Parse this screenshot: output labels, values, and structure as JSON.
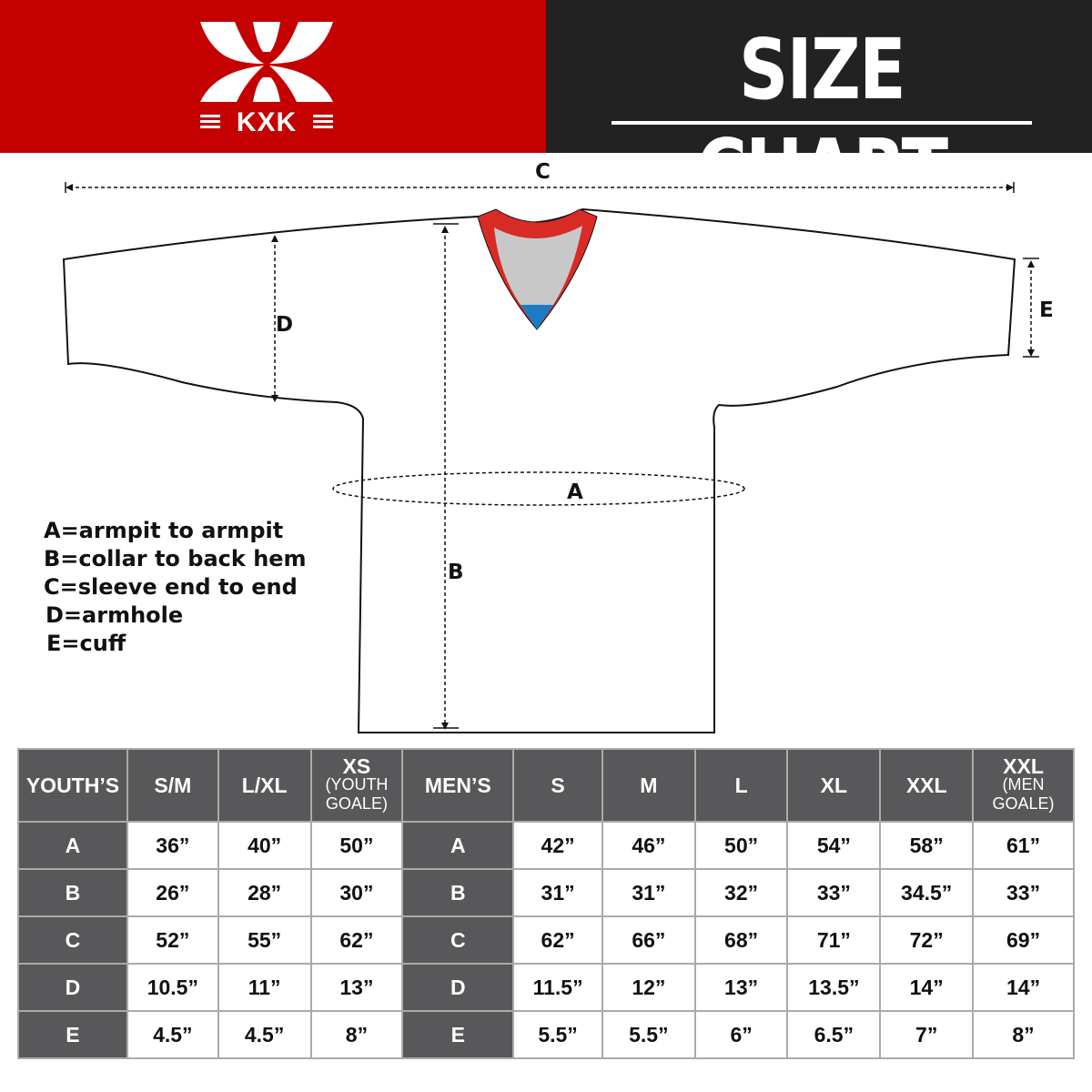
{
  "brand": {
    "logo_text": "KXK",
    "colors": {
      "red": "#c40000",
      "dark": "#222222",
      "table_header": "#58585a"
    }
  },
  "title": "SIZE CHART",
  "diagram": {
    "labels": {
      "a": "A",
      "b": "B",
      "c": "C",
      "d": "D",
      "e": "E"
    }
  },
  "legend": [
    "A=armpit to armpit",
    "B=collar to back hem",
    "C=sleeve end to end",
    "D=armhole",
    "E=cuff"
  ],
  "table": {
    "youth": {
      "header": "YOUTH’S",
      "sizes": [
        {
          "main": "S/M",
          "sub": ""
        },
        {
          "main": "L/XL",
          "sub": ""
        },
        {
          "main": "XS",
          "sub": "(YOUTH GOALE)"
        }
      ],
      "rows": [
        {
          "label": "A",
          "values": [
            "36”",
            "40”",
            "50”"
          ]
        },
        {
          "label": "B",
          "values": [
            "26”",
            "28”",
            "30”"
          ]
        },
        {
          "label": "C",
          "values": [
            "52”",
            "55”",
            "62”"
          ]
        },
        {
          "label": "D",
          "values": [
            "10.5”",
            "11”",
            "13”"
          ]
        },
        {
          "label": "E",
          "values": [
            "4.5”",
            "4.5”",
            "8”"
          ]
        }
      ]
    },
    "men": {
      "header": "MEN’S",
      "sizes": [
        {
          "main": "S",
          "sub": ""
        },
        {
          "main": "M",
          "sub": ""
        },
        {
          "main": "L",
          "sub": ""
        },
        {
          "main": "XL",
          "sub": ""
        },
        {
          "main": "XXL",
          "sub": ""
        },
        {
          "main": "XXL",
          "sub": "(MEN GOALE)"
        }
      ],
      "rows": [
        {
          "label": "A",
          "values": [
            "42”",
            "46”",
            "50”",
            "54”",
            "58”",
            "61”"
          ]
        },
        {
          "label": "B",
          "values": [
            "31”",
            "31”",
            "32”",
            "33”",
            "34.5”",
            "33”"
          ]
        },
        {
          "label": "C",
          "values": [
            "62”",
            "66”",
            "68”",
            "71”",
            "72”",
            "69”"
          ]
        },
        {
          "label": "D",
          "values": [
            "11.5”",
            "12”",
            "13”",
            "13.5”",
            "14”",
            "14”"
          ]
        },
        {
          "label": "E",
          "values": [
            "5.5”",
            "5.5”",
            "6”",
            "6.5”",
            "7”",
            "8”"
          ]
        }
      ]
    }
  }
}
